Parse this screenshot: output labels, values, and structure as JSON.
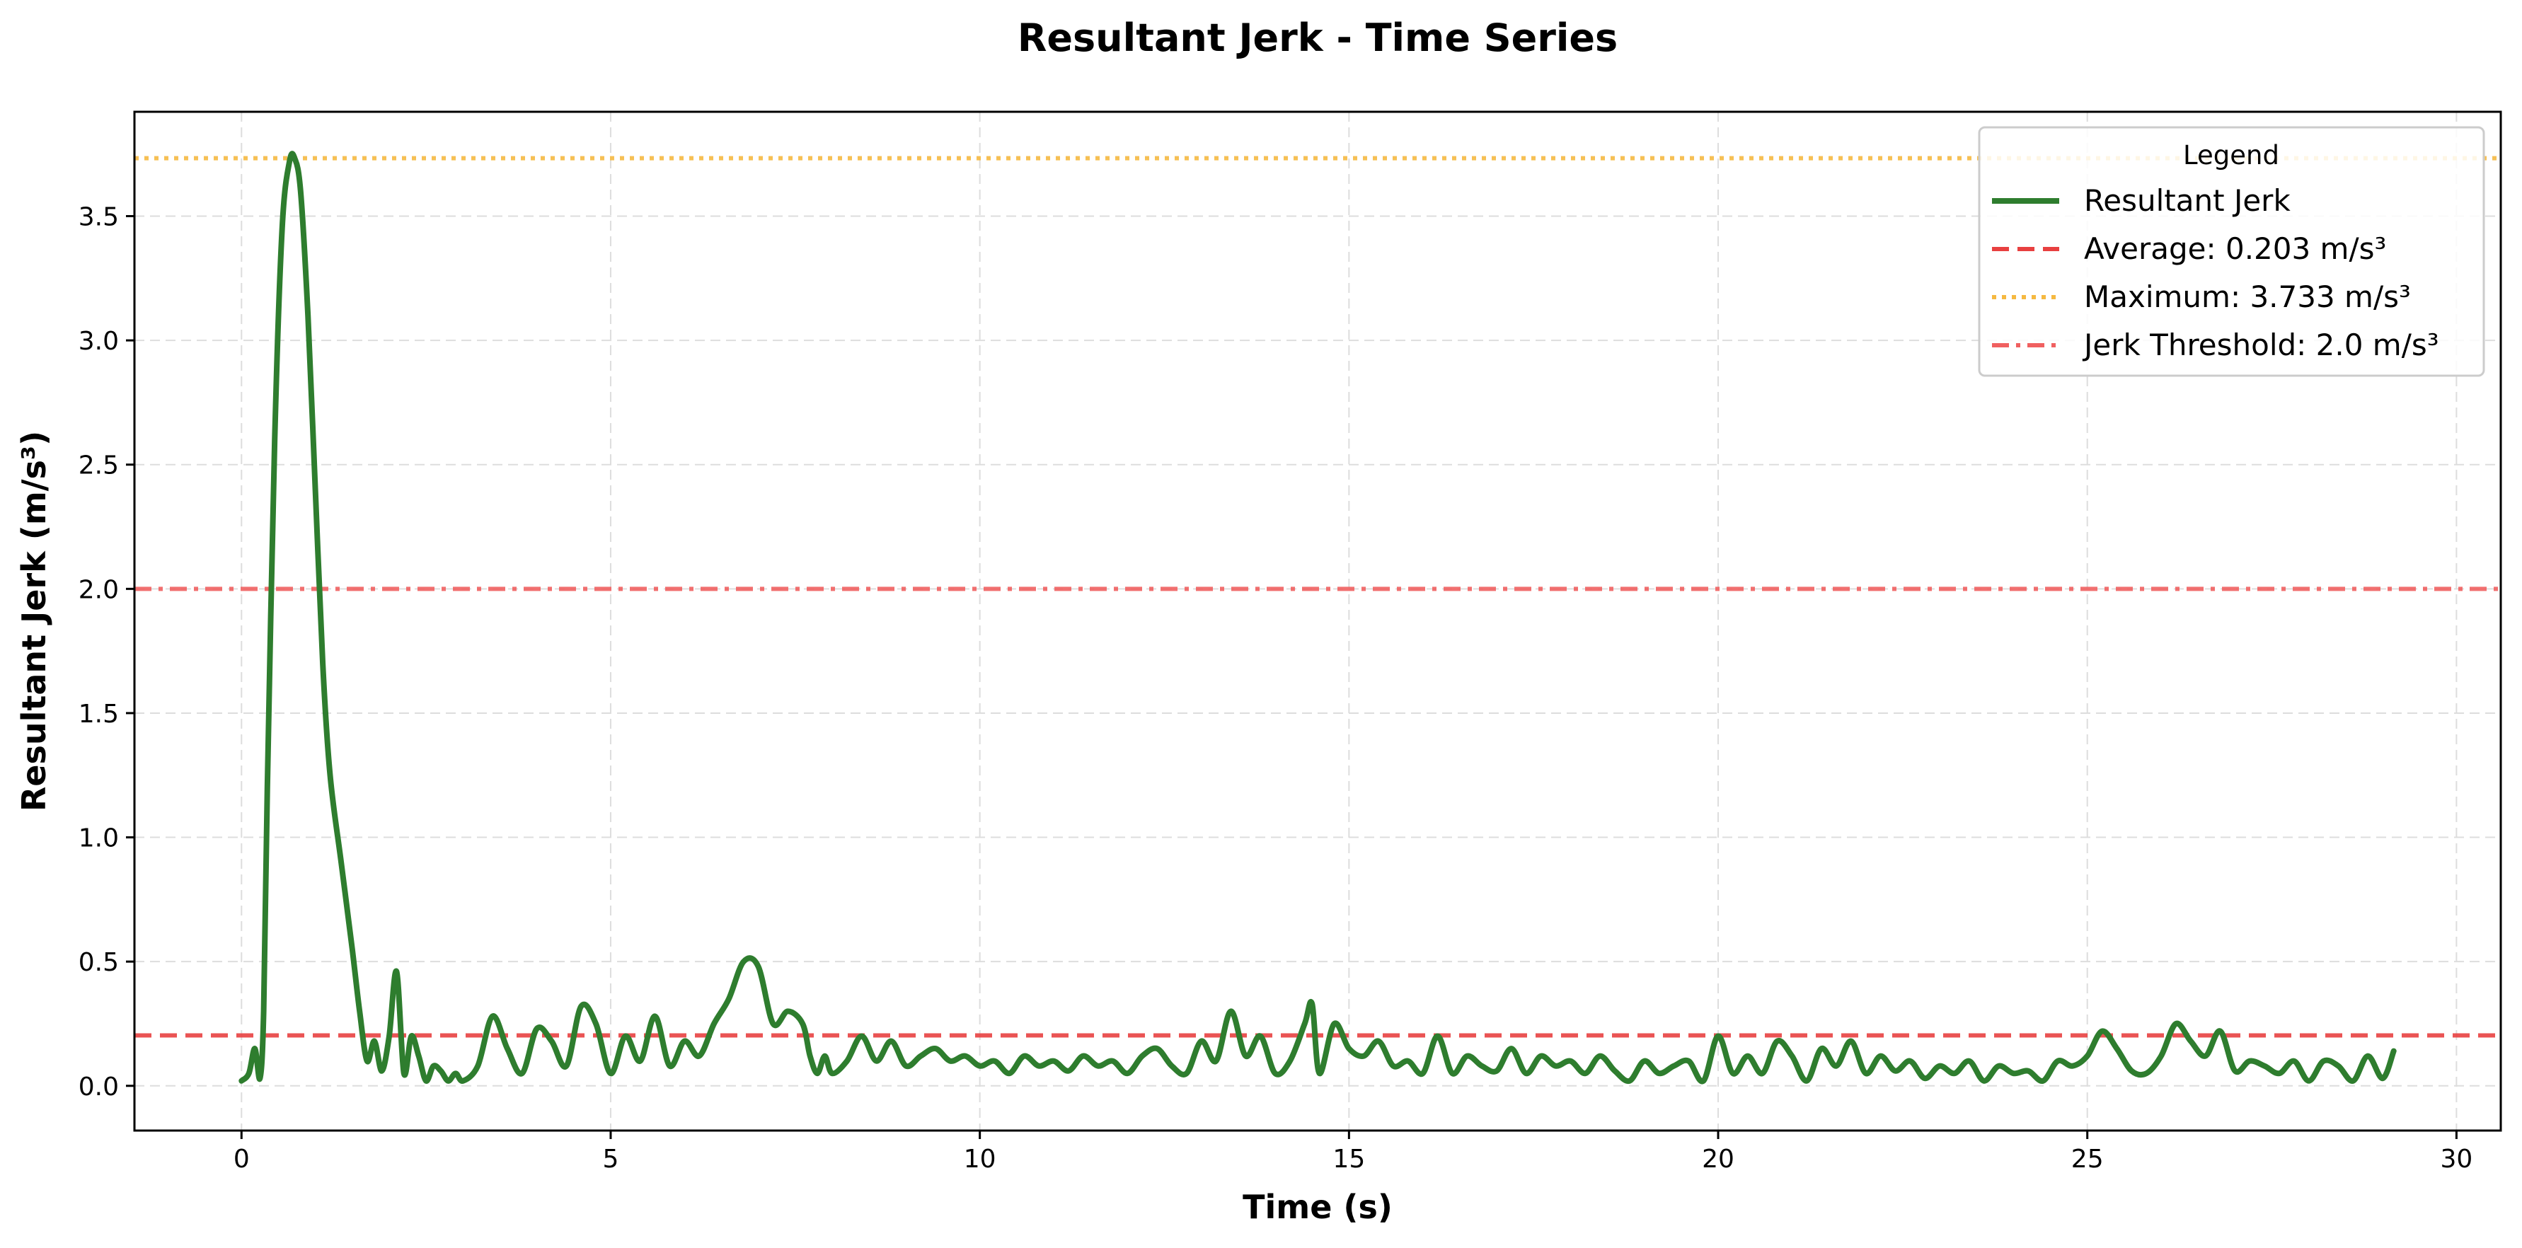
{
  "chart_data": {
    "type": "line",
    "title": "Resultant Jerk - Time Series",
    "xlabel": "Time (s)",
    "ylabel": "Resultant Jerk (m/s³)",
    "xlim": [
      -1.45,
      30.6
    ],
    "ylim": [
      -0.18,
      3.92
    ],
    "xticks": [
      0,
      5,
      10,
      15,
      20,
      25,
      30
    ],
    "yticks": [
      0.0,
      0.5,
      1.0,
      1.5,
      2.0,
      2.5,
      3.0,
      3.5
    ],
    "xtick_labels": [
      "0",
      "5",
      "10",
      "15",
      "20",
      "25",
      "30"
    ],
    "ytick_labels": [
      "0.0",
      "0.5",
      "1.0",
      "1.5",
      "2.0",
      "2.5",
      "3.0",
      "3.5"
    ],
    "grid": true,
    "legend_title": "Legend",
    "legend_position": "top-right",
    "series": [
      {
        "name": "Resultant Jerk",
        "color": "#2e7d2e",
        "x": [
          0.0,
          0.1,
          0.18,
          0.25,
          0.3,
          0.35,
          0.45,
          0.55,
          0.65,
          0.72,
          0.8,
          0.9,
          1.0,
          1.1,
          1.2,
          1.35,
          1.5,
          1.6,
          1.7,
          1.8,
          1.9,
          2.0,
          2.1,
          2.2,
          2.3,
          2.4,
          2.5,
          2.6,
          2.7,
          2.8,
          2.9,
          3.0,
          3.2,
          3.4,
          3.6,
          3.8,
          4.0,
          4.2,
          4.4,
          4.6,
          4.8,
          5.0,
          5.2,
          5.4,
          5.6,
          5.8,
          6.0,
          6.2,
          6.4,
          6.6,
          6.8,
          7.0,
          7.2,
          7.4,
          7.6,
          7.7,
          7.8,
          7.9,
          8.0,
          8.2,
          8.4,
          8.6,
          8.8,
          9.0,
          9.2,
          9.4,
          9.6,
          9.8,
          10.0,
          10.2,
          10.4,
          10.6,
          10.8,
          11.0,
          11.2,
          11.4,
          11.6,
          11.8,
          12.0,
          12.2,
          12.4,
          12.6,
          12.8,
          13.0,
          13.2,
          13.4,
          13.6,
          13.8,
          14.0,
          14.2,
          14.4,
          14.5,
          14.6,
          14.8,
          15.0,
          15.2,
          15.4,
          15.6,
          15.8,
          16.0,
          16.2,
          16.4,
          16.6,
          16.8,
          17.0,
          17.2,
          17.4,
          17.6,
          17.8,
          18.0,
          18.2,
          18.4,
          18.6,
          18.8,
          19.0,
          19.2,
          19.4,
          19.6,
          19.8,
          20.0,
          20.2,
          20.4,
          20.6,
          20.8,
          21.0,
          21.2,
          21.4,
          21.6,
          21.8,
          22.0,
          22.2,
          22.4,
          22.6,
          22.8,
          23.0,
          23.2,
          23.4,
          23.6,
          23.8,
          24.0,
          24.2,
          24.4,
          24.6,
          24.8,
          25.0,
          25.2,
          25.4,
          25.6,
          25.8,
          26.0,
          26.2,
          26.4,
          26.6,
          26.8,
          27.0,
          27.2,
          27.4,
          27.6,
          27.8,
          28.0,
          28.2,
          28.4,
          28.6,
          28.8,
          29.0,
          29.15
        ],
        "y": [
          0.02,
          0.05,
          0.15,
          0.03,
          0.3,
          1.2,
          2.6,
          3.45,
          3.72,
          3.733,
          3.6,
          3.1,
          2.4,
          1.7,
          1.25,
          0.9,
          0.55,
          0.3,
          0.1,
          0.18,
          0.06,
          0.2,
          0.46,
          0.05,
          0.2,
          0.12,
          0.02,
          0.08,
          0.06,
          0.02,
          0.05,
          0.02,
          0.08,
          0.28,
          0.15,
          0.05,
          0.23,
          0.18,
          0.08,
          0.32,
          0.25,
          0.05,
          0.2,
          0.1,
          0.28,
          0.08,
          0.18,
          0.12,
          0.25,
          0.35,
          0.5,
          0.48,
          0.25,
          0.3,
          0.25,
          0.12,
          0.05,
          0.12,
          0.05,
          0.1,
          0.2,
          0.1,
          0.18,
          0.08,
          0.12,
          0.15,
          0.1,
          0.12,
          0.08,
          0.1,
          0.05,
          0.12,
          0.08,
          0.1,
          0.06,
          0.12,
          0.08,
          0.1,
          0.05,
          0.12,
          0.15,
          0.08,
          0.05,
          0.18,
          0.1,
          0.3,
          0.12,
          0.2,
          0.05,
          0.1,
          0.25,
          0.33,
          0.05,
          0.25,
          0.15,
          0.12,
          0.18,
          0.08,
          0.1,
          0.05,
          0.2,
          0.05,
          0.12,
          0.08,
          0.06,
          0.15,
          0.05,
          0.12,
          0.08,
          0.1,
          0.05,
          0.12,
          0.06,
          0.02,
          0.1,
          0.05,
          0.08,
          0.1,
          0.02,
          0.2,
          0.05,
          0.12,
          0.05,
          0.18,
          0.12,
          0.02,
          0.15,
          0.08,
          0.18,
          0.05,
          0.12,
          0.06,
          0.1,
          0.03,
          0.08,
          0.05,
          0.1,
          0.02,
          0.08,
          0.05,
          0.06,
          0.02,
          0.1,
          0.08,
          0.12,
          0.22,
          0.15,
          0.06,
          0.05,
          0.12,
          0.25,
          0.18,
          0.12,
          0.22,
          0.06,
          0.1,
          0.08,
          0.05,
          0.1,
          0.02,
          0.1,
          0.08,
          0.02,
          0.12,
          0.03,
          0.14
        ]
      }
    ],
    "reference_lines": [
      {
        "name": "Average: 0.203 m/s³",
        "y": 0.203,
        "style": "dashed",
        "color": "#e84040"
      },
      {
        "name": "Maximum: 3.733 m/s³",
        "y": 3.733,
        "style": "dotted",
        "color": "#f5b942"
      },
      {
        "name": "Jerk Threshold: 2.0 m/s³",
        "y": 2.0,
        "style": "dashdot",
        "color": "#f06060"
      }
    ]
  }
}
